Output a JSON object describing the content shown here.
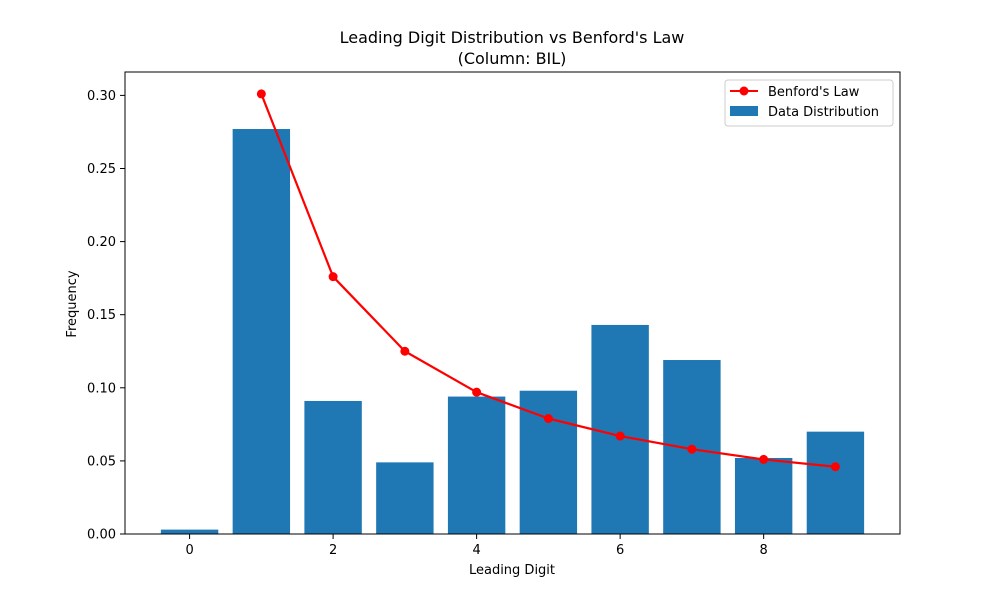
{
  "chart_data": {
    "type": "bar",
    "title": "Leading Digit Distribution vs Benford's Law",
    "subtitle": "(Column: BIL)",
    "xlabel": "Leading Digit",
    "ylabel": "Frequency",
    "xlim": [
      -0.9,
      9.9
    ],
    "ylim": [
      0,
      0.316
    ],
    "x_ticks": [
      0,
      2,
      4,
      6,
      8
    ],
    "x_tick_labels": [
      "0",
      "2",
      "4",
      "6",
      "8"
    ],
    "y_ticks": [
      0,
      0.05,
      0.1,
      0.15,
      0.2,
      0.25,
      0.3
    ],
    "y_tick_labels": [
      "0.00",
      "0.05",
      "0.10",
      "0.15",
      "0.20",
      "0.25",
      "0.30"
    ],
    "grid": false,
    "legend_position": "top-right",
    "bar_width": 0.8,
    "series": [
      {
        "name": "Data Distribution",
        "kind": "bar",
        "color": "#1f77b4",
        "x": [
          0,
          1,
          2,
          3,
          4,
          5,
          6,
          7,
          8,
          9
        ],
        "values": [
          0.003,
          0.277,
          0.091,
          0.049,
          0.094,
          0.098,
          0.143,
          0.119,
          0.052,
          0.07
        ]
      },
      {
        "name": "Benford's Law",
        "kind": "line",
        "color": "#ff0000",
        "marker": "circle",
        "x": [
          1,
          2,
          3,
          4,
          5,
          6,
          7,
          8,
          9
        ],
        "values": [
          0.301,
          0.176,
          0.125,
          0.097,
          0.079,
          0.067,
          0.058,
          0.051,
          0.046
        ]
      }
    ],
    "legend": [
      {
        "label": "Benford's Law",
        "kind": "line",
        "color": "#ff0000"
      },
      {
        "label": "Data Distribution",
        "kind": "bar",
        "color": "#1f77b4"
      }
    ]
  }
}
